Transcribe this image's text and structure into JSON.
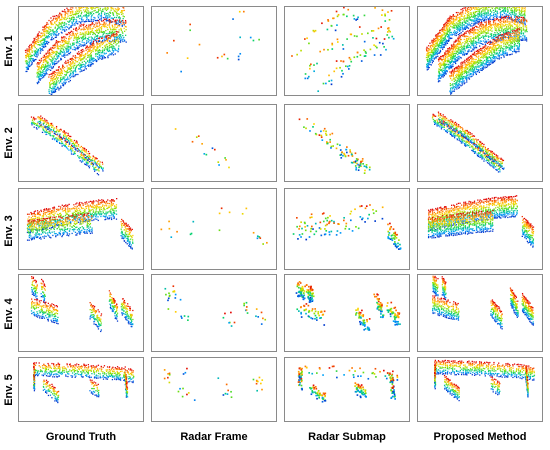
{
  "rows": [
    {
      "label": "Env. 1"
    },
    {
      "label": "Env. 2"
    },
    {
      "label": "Env. 3"
    },
    {
      "label": "Env. 4"
    },
    {
      "label": "Env. 5"
    }
  ],
  "columns": [
    {
      "label": "Ground Truth"
    },
    {
      "label": "Radar Frame"
    },
    {
      "label": "Radar Submap"
    },
    {
      "label": "Proposed Method"
    }
  ],
  "colors": {
    "panel_border": "#8a8a8a",
    "colormap": [
      "#0033cc",
      "#00a0ff",
      "#00d070",
      "#80e000",
      "#ffd700",
      "#ff7a00",
      "#e00000"
    ]
  }
}
